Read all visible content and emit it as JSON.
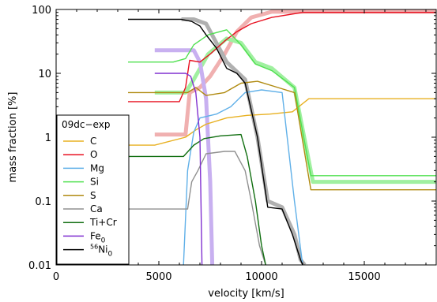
{
  "chart_data": {
    "type": "line",
    "xlabel": "velocity [km/s]",
    "ylabel": "mass fraction [%]",
    "xscale": "linear",
    "yscale": "log",
    "xlim": [
      0,
      18500
    ],
    "ylim": [
      0.01,
      100
    ],
    "xticks": [
      0,
      5000,
      10000,
      15000
    ],
    "xtick_labels": [
      "0",
      "5000",
      "10000",
      "15000"
    ],
    "yticks": [
      0.01,
      0.1,
      1,
      10,
      100
    ],
    "ytick_labels": [
      "0.01",
      "0.1",
      "1",
      "10",
      "100"
    ],
    "legend": {
      "title": "09dc−exp",
      "placement": "lower-left"
    },
    "series": [
      {
        "name": "C",
        "color": "#e8b020",
        "x": [
          3500,
          4800,
          6300,
          6800,
          7300,
          8300,
          9300,
          10400,
          11500,
          12300,
          18500
        ],
        "y": [
          0.75,
          0.75,
          1.0,
          1.3,
          1.6,
          2.0,
          2.2,
          2.3,
          2.5,
          4.0,
          4.0
        ]
      },
      {
        "name": "O",
        "color": "#e81020",
        "x": [
          3500,
          4800,
          6000,
          6300,
          6500,
          7000,
          7500,
          8200,
          8800,
          9500,
          10500,
          12000,
          18500
        ],
        "y": [
          3.6,
          3.6,
          3.6,
          6.0,
          16,
          15,
          20,
          32,
          45,
          60,
          75,
          90,
          90
        ]
      },
      {
        "name": "Mg",
        "color": "#60b0e8",
        "x": [
          6200,
          6400,
          6700,
          7000,
          7800,
          8500,
          9200,
          10000,
          11000,
          11600,
          12000
        ],
        "y": [
          0.01,
          0.3,
          1.2,
          2.0,
          2.3,
          3.0,
          5.0,
          5.5,
          5.0,
          0.1,
          0.01
        ]
      },
      {
        "name": "Si",
        "color": "#50e050",
        "x": [
          3500,
          4800,
          5700,
          6300,
          6700,
          7400,
          8300,
          9000,
          9700,
          10500,
          11600,
          12400,
          18500
        ],
        "y": [
          15,
          15,
          15,
          17,
          28,
          40,
          48,
          28,
          14,
          11,
          6.0,
          0.25,
          0.25
        ]
      },
      {
        "name": "S",
        "color": "#b08a10",
        "x": [
          3500,
          4800,
          6400,
          6800,
          7300,
          8200,
          9000,
          9800,
          10800,
          11600,
          12400,
          18500
        ],
        "y": [
          5.0,
          5.0,
          5.0,
          6.0,
          4.5,
          5.0,
          7.0,
          7.5,
          6.0,
          5.0,
          0.15,
          0.15
        ]
      },
      {
        "name": "Ca",
        "color": "#909090",
        "x": [
          3500,
          4800,
          6400,
          6600,
          6900,
          7300,
          8200,
          8700,
          9200,
          9500,
          9900,
          10200
        ],
        "y": [
          0.075,
          0.075,
          0.075,
          0.2,
          0.3,
          0.55,
          0.6,
          0.6,
          0.3,
          0.1,
          0.02,
          0.01
        ]
      },
      {
        "name": "Ti+Cr",
        "color": "#106e10",
        "x": [
          3500,
          4800,
          6200,
          6700,
          7200,
          8000,
          9000,
          9300,
          9700,
          10000,
          10200
        ],
        "y": [
          0.5,
          0.5,
          0.5,
          0.75,
          0.95,
          1.05,
          1.1,
          0.5,
          0.1,
          0.02,
          0.01
        ]
      },
      {
        "name": "Fe_0",
        "color": "#8030d0",
        "x": [
          4800,
          6300,
          6550,
          6800,
          7000,
          7100
        ],
        "y": [
          10,
          10,
          9,
          5,
          1.0,
          0.01
        ]
      },
      {
        "name": "56Ni_0",
        "color": "#000000",
        "x": [
          3500,
          6100,
          6600,
          7000,
          7300,
          7800,
          8300,
          8800,
          9200,
          9800,
          10300,
          11000,
          11500,
          11900,
          12000
        ],
        "y": [
          70,
          70,
          65,
          55,
          40,
          25,
          12,
          10,
          7,
          1.0,
          0.08,
          0.075,
          0.03,
          0.012,
          0.01
        ]
      }
    ],
    "ref_curves": [
      {
        "color": "#f0b0b0",
        "x": [
          4800,
          6300,
          6500,
          7000,
          7500,
          8200,
          8800,
          9500,
          10500,
          12000,
          18500
        ],
        "y": [
          1.1,
          1.1,
          5.0,
          6.0,
          9.0,
          20,
          45,
          75,
          92,
          92,
          92
        ]
      },
      {
        "color": "#a0f0a0",
        "x": [
          4800,
          6300,
          6700,
          7400,
          8300,
          9000,
          9700,
          10500,
          11600,
          12500,
          18500
        ],
        "y": [
          5.0,
          5.0,
          8.0,
          20,
          35,
          30,
          15,
          12,
          6.0,
          0.2,
          0.2
        ]
      },
      {
        "color": "#c8b0f0",
        "x": [
          4800,
          6700,
          7000,
          7300,
          7500,
          7600
        ],
        "y": [
          23,
          23,
          15,
          4.0,
          0.2,
          0.01
        ]
      },
      {
        "color": "#b0b0b0",
        "x": [
          6100,
          6700,
          7300,
          8300,
          9200,
          9800,
          10300,
          11000,
          11600,
          11900,
          12100
        ],
        "y": [
          70,
          70,
          60,
          15,
          8,
          1.0,
          0.1,
          0.08,
          0.03,
          0.012,
          0.01
        ]
      }
    ]
  }
}
